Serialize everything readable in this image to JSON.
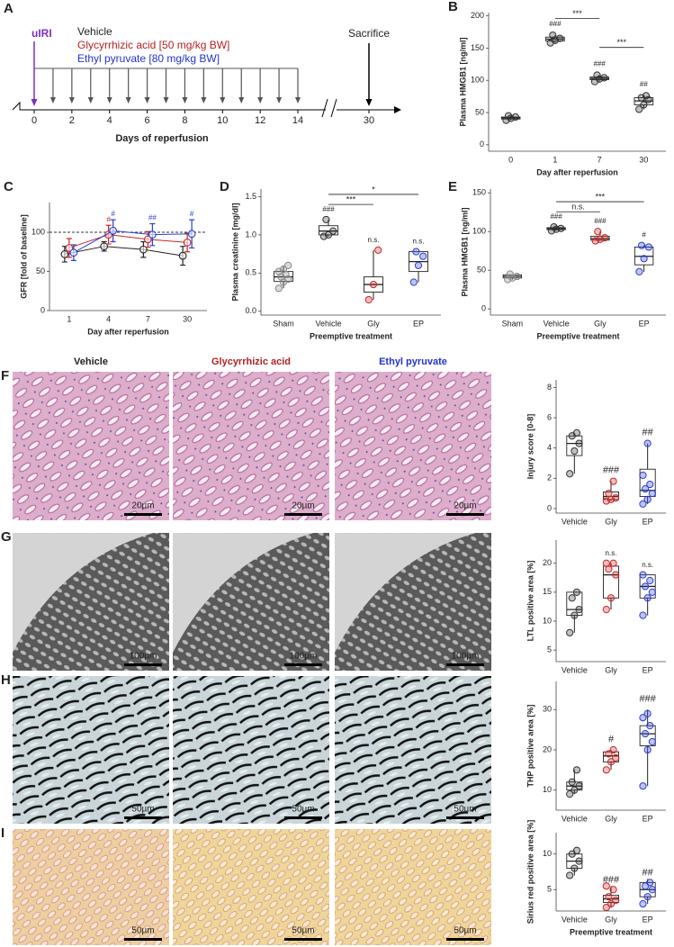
{
  "chart_data": [
    {
      "type": "timeline",
      "panel": "A",
      "event": "uIRI",
      "event_color": "#7b2fbf",
      "event_x": 0,
      "legend": [
        {
          "name": "Vehicle",
          "color": "#222222"
        },
        {
          "name": "Glycyrrhizic acid [50 mg/kg BW]",
          "color": "#b22222"
        },
        {
          "name": "Ethyl pyruvate [80 mg/kg BW]",
          "color": "#2233cc"
        }
      ],
      "x": [
        1,
        2,
        3,
        4,
        5,
        6,
        7,
        8,
        9,
        10,
        11,
        12,
        13,
        14
      ],
      "end_event": "Sacrifice",
      "end_x": 30,
      "xticks": [
        0,
        2,
        4,
        6,
        8,
        10,
        12,
        14,
        30
      ],
      "xlabel": "Days of reperfusion"
    },
    {
      "type": "box",
      "panel": "B",
      "ylabel": "Plasma HMGB1 [ng/ml]",
      "xlabel": "Day after reperfusion",
      "categories": [
        "0",
        "1",
        "7",
        "30"
      ],
      "ylim": [
        -10,
        205
      ],
      "yticks": [
        0,
        50,
        100,
        150,
        200
      ],
      "groups": [
        {
          "color": "#333333",
          "points": [
            38,
            41,
            43,
            45
          ],
          "box": [
            38,
            40,
            41.5,
            43,
            45
          ]
        },
        {
          "color": "#333333",
          "points": [
            158,
            162,
            165,
            170
          ],
          "box": [
            158,
            161,
            164,
            167,
            170
          ]
        },
        {
          "color": "#333333",
          "points": [
            98,
            102,
            104,
            108
          ],
          "box": [
            98,
            101,
            103,
            105,
            108
          ]
        },
        {
          "color": "#333333",
          "points": [
            55,
            62,
            70,
            73,
            76
          ],
          "box": [
            55,
            62,
            68,
            73,
            76
          ]
        }
      ],
      "annotations": [
        null,
        "###",
        "###",
        "##"
      ],
      "brackets": [
        {
          "between": [
            "1",
            "7"
          ],
          "label": "***"
        },
        {
          "between": [
            "7",
            "30"
          ],
          "label": "***"
        }
      ]
    },
    {
      "type": "line",
      "panel": "C",
      "ylabel": "GFR [fold of baseline]",
      "xlabel": "Day after reperfusion",
      "categories": [
        "1",
        "4",
        "7",
        "30"
      ],
      "ylim": [
        0,
        138
      ],
      "yticks": [
        0,
        50,
        100
      ],
      "reference_line": 100,
      "series": [
        {
          "color": "#222222",
          "values": [
            72,
            82,
            78,
            70
          ],
          "errors": [
            10,
            6,
            10,
            12
          ]
        },
        {
          "color": "#c62828",
          "values": [
            80,
            97,
            91,
            87
          ],
          "errors": [
            12,
            12,
            10,
            12
          ],
          "annotations": [
            null,
            "#",
            null,
            null
          ]
        },
        {
          "color": "#2a3fd0",
          "values": [
            74,
            102,
            97,
            98
          ],
          "errors": [
            10,
            14,
            14,
            18
          ],
          "annotations": [
            null,
            "#",
            "##",
            "#"
          ]
        }
      ]
    },
    {
      "type": "box",
      "panel": "D",
      "ylabel": "Plasma creatinine [mg/dl]",
      "xlabel": "Preemptive treatment",
      "categories": [
        "Sham",
        "Vehicle",
        "Gly",
        "EP"
      ],
      "ylim": [
        -0.05,
        1.6
      ],
      "yticks": [
        {
          "value": 0,
          "label": "0.0"
        },
        {
          "value": 0.5,
          "label": "0.5"
        },
        {
          "value": 1,
          "label": "1.0"
        },
        {
          "value": 1.5,
          "label": "1.5"
        }
      ],
      "groups": [
        {
          "color": "#888888",
          "points": [
            0.3,
            0.38,
            0.42,
            0.45,
            0.48,
            0.52,
            0.55,
            0.6
          ],
          "box": [
            0.3,
            0.39,
            0.45,
            0.52,
            0.6
          ]
        },
        {
          "color": "#333333",
          "points": [
            0.98,
            1.0,
            1.05,
            1.2
          ],
          "box": [
            0.98,
            1.0,
            1.05,
            1.12,
            1.2
          ]
        },
        {
          "color": "#c62828",
          "points": [
            0.15,
            0.35,
            0.8
          ],
          "box": [
            0.15,
            0.25,
            0.35,
            0.45,
            0.8
          ]
        },
        {
          "color": "#2a3fd0",
          "points": [
            0.38,
            0.6,
            0.72,
            0.78
          ],
          "box": [
            0.38,
            0.52,
            0.65,
            0.78,
            0.78
          ]
        }
      ],
      "annotations": [
        null,
        "###",
        "n.s.",
        "n.s."
      ],
      "brackets": [
        {
          "between": [
            "Vehicle",
            "Gly"
          ],
          "label": "***"
        },
        {
          "between": [
            "Vehicle",
            "EP"
          ],
          "label": "*"
        }
      ]
    },
    {
      "type": "box",
      "panel": "E",
      "ylabel": "Plasma HMGB1 [ng/ml]",
      "xlabel": "Preemptive treatment",
      "categories": [
        "Sham",
        "Vehicle",
        "Gly",
        "EP"
      ],
      "ylim": [
        -8,
        155
      ],
      "yticks": [
        0,
        50,
        100,
        150
      ],
      "groups": [
        {
          "color": "#888888",
          "points": [
            38,
            40,
            42,
            45
          ],
          "box": [
            38,
            40,
            42,
            44,
            45
          ]
        },
        {
          "color": "#333333",
          "points": [
            101,
            103,
            104,
            106
          ],
          "box": [
            101,
            102.5,
            104,
            105,
            106
          ]
        },
        {
          "color": "#c62828",
          "points": [
            88,
            90,
            92,
            100
          ],
          "box": [
            88,
            89,
            91,
            94,
            100
          ]
        },
        {
          "color": "#2a3fd0",
          "points": [
            48,
            65,
            80,
            82
          ],
          "box": [
            48,
            57,
            68,
            80,
            82
          ]
        }
      ],
      "annotations": [
        null,
        "###",
        "###",
        "#"
      ],
      "brackets": [
        {
          "between": [
            "Vehicle",
            "Gly"
          ],
          "label": "n.s."
        },
        {
          "between": [
            "Vehicle",
            "EP"
          ],
          "label": "***"
        }
      ]
    },
    {
      "type": "box",
      "ylabel": "Injury score [0-8]",
      "categories": [
        "Vehicle",
        "Gly",
        "EP"
      ],
      "ylim": [
        -0.3,
        8.5
      ],
      "yticks": [
        0,
        2,
        4,
        6,
        8
      ],
      "groups": [
        {
          "color": "#333333",
          "points": [
            2.3,
            3.8,
            4.3,
            4.8,
            5
          ],
          "box": [
            2.3,
            3.5,
            4.3,
            4.8,
            5
          ]
        },
        {
          "color": "#c62828",
          "points": [
            0.5,
            0.6,
            0.7,
            1.0,
            1.8
          ],
          "box": [
            0.5,
            0.6,
            0.8,
            1.1,
            1.8
          ]
        },
        {
          "color": "#2a3fd0",
          "points": [
            0.3,
            0.6,
            1.0,
            1.3,
            1.6,
            2.2,
            4.3
          ],
          "box": [
            0.3,
            0.8,
            1.2,
            2.6,
            4.3
          ]
        }
      ],
      "annotations": [
        null,
        "###",
        "##"
      ]
    },
    {
      "type": "box",
      "ylabel": "LTL positive area [%]",
      "categories": [
        "Vehicle",
        "Gly",
        "EP"
      ],
      "ylim": [
        3,
        24
      ],
      "yticks": [
        5,
        10,
        15,
        20
      ],
      "groups": [
        {
          "color": "#333333",
          "points": [
            8,
            11,
            12,
            14,
            15
          ],
          "box": [
            8,
            11,
            12,
            15,
            15
          ]
        },
        {
          "color": "#c62828",
          "points": [
            12,
            14,
            18,
            19,
            20,
            20
          ],
          "box": [
            12,
            14,
            18,
            19.5,
            20
          ]
        },
        {
          "color": "#2a3fd0",
          "points": [
            11,
            14,
            15,
            16,
            17,
            18
          ],
          "box": [
            11,
            14,
            16,
            18,
            18
          ]
        }
      ],
      "annotations": [
        null,
        "n.s.",
        "n.s."
      ]
    },
    {
      "type": "box",
      "ylabel": "THP positive area [%]",
      "categories": [
        "Vehicle",
        "Gly",
        "EP"
      ],
      "ylim": [
        5,
        37
      ],
      "yticks": [
        10,
        20,
        30
      ],
      "groups": [
        {
          "color": "#333333",
          "points": [
            9,
            10,
            11,
            12,
            15
          ],
          "box": [
            9,
            10,
            11,
            12,
            15
          ]
        },
        {
          "color": "#c62828",
          "points": [
            15,
            17,
            18,
            19,
            20
          ],
          "box": [
            15,
            17,
            18.5,
            19.5,
            20
          ]
        },
        {
          "color": "#2a3fd0",
          "points": [
            11,
            20,
            22,
            24,
            26,
            28,
            29
          ],
          "box": [
            11,
            21,
            24,
            26,
            30
          ]
        }
      ],
      "annotations": [
        null,
        "#",
        "###"
      ]
    },
    {
      "type": "box",
      "ylabel": "Sirius red positive area [%]",
      "xlabel": "Preemptive treatment",
      "categories": [
        "Vehicle",
        "Gly",
        "EP"
      ],
      "ylim": [
        2,
        13
      ],
      "yticks": [
        5,
        10
      ],
      "groups": [
        {
          "color": "#333333",
          "points": [
            7,
            8,
            9,
            10,
            10.5
          ],
          "box": [
            7,
            8,
            9,
            10,
            10.5
          ]
        },
        {
          "color": "#c62828",
          "points": [
            2.5,
            3,
            3.5,
            4,
            5,
            5.5
          ],
          "box": [
            2.5,
            3.2,
            3.7,
            4.2,
            5.5
          ]
        },
        {
          "color": "#2a3fd0",
          "points": [
            3,
            4,
            5,
            5.5,
            6
          ],
          "box": [
            3,
            4,
            5,
            6,
            6.5
          ]
        }
      ],
      "annotations": [
        null,
        "###",
        "##"
      ]
    }
  ],
  "micrographs": {
    "columns": [
      {
        "name": "Vehicle",
        "color": "#222222"
      },
      {
        "name": "Glycyrrhizic acid",
        "color": "#b22222"
      },
      {
        "name": "Ethyl pyruvate",
        "color": "#2233cc"
      }
    ],
    "rows": [
      {
        "panel": "F",
        "scale_bar": "20µm"
      },
      {
        "panel": "G",
        "scale_bar": "100µm"
      },
      {
        "panel": "H",
        "scale_bar": "50µm"
      },
      {
        "panel": "I",
        "scale_bar": "50µm"
      }
    ]
  }
}
